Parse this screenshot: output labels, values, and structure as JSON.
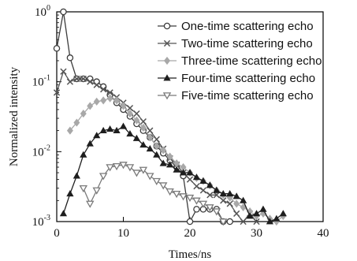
{
  "chart_data": {
    "type": "line",
    "xlabel": "Times/ns",
    "ylabel": "Normalized intensity",
    "xlim": [
      0,
      40
    ],
    "ylim": [
      0.001,
      1
    ],
    "yscale": "log",
    "x_ticks": [
      0,
      10,
      20,
      30,
      40
    ],
    "y_tick_labels": [
      {
        "value": 0.001,
        "base": "10",
        "exp": "-3"
      },
      {
        "value": 0.01,
        "base": "10",
        "exp": "-2"
      },
      {
        "value": 0.1,
        "base": "10",
        "exp": "-1"
      },
      {
        "value": 1,
        "base": "10",
        "exp": "0"
      }
    ],
    "legend_position": "top-right",
    "series": [
      {
        "name": "One-time scattering echo",
        "marker": "circle",
        "color": "#3c3c3c",
        "x": [
          0,
          1,
          2,
          3,
          4,
          5,
          6,
          7,
          8,
          9,
          10,
          11,
          12,
          13,
          14,
          15,
          16,
          17,
          18,
          19,
          20,
          21,
          22,
          23,
          24,
          25,
          26
        ],
        "y": [
          0.3,
          1.0,
          0.22,
          0.11,
          0.11,
          0.11,
          0.1,
          0.085,
          0.065,
          0.05,
          0.04,
          0.032,
          0.025,
          0.02,
          0.016,
          0.012,
          0.0095,
          0.0075,
          0.006,
          0.0045,
          0.001,
          0.0015,
          0.0015,
          0.0015,
          0.0015,
          0.001,
          0.001
        ]
      },
      {
        "name": "Two-time scattering echo",
        "marker": "x",
        "color": "#555555",
        "x": [
          0,
          1,
          2,
          3,
          4,
          5,
          6,
          7,
          8,
          9,
          10,
          11,
          12,
          13,
          14,
          15,
          16,
          17,
          18,
          19,
          20,
          21,
          22,
          23,
          24,
          25,
          26,
          27,
          28,
          29,
          30
        ],
        "y": [
          0.07,
          0.14,
          0.1,
          0.11,
          0.11,
          0.1,
          0.09,
          0.078,
          0.07,
          0.06,
          0.05,
          0.042,
          0.035,
          0.027,
          0.02,
          0.015,
          0.011,
          0.008,
          0.0065,
          0.005,
          0.004,
          0.0032,
          0.0028,
          0.0024,
          0.0024,
          0.002,
          0.0018,
          0.0013,
          0.001,
          0.0013,
          0.001
        ]
      },
      {
        "name": "Three-time scattering echo",
        "marker": "diamond",
        "color": "#a8a8a8",
        "x": [
          2,
          3,
          4,
          5,
          6,
          7,
          8,
          9,
          10,
          11,
          12,
          13,
          14,
          15,
          16,
          17,
          18,
          19,
          20,
          21,
          22,
          23,
          24,
          25,
          26,
          27,
          28,
          29,
          30,
          31,
          32,
          33,
          34
        ],
        "y": [
          0.02,
          0.026,
          0.035,
          0.045,
          0.052,
          0.054,
          0.058,
          0.054,
          0.045,
          0.035,
          0.028,
          0.022,
          0.016,
          0.012,
          0.0105,
          0.0085,
          0.0068,
          0.006,
          0.005,
          0.0042,
          0.0038,
          0.0033,
          0.0028,
          0.0024,
          0.0022,
          0.0018,
          0.0016,
          0.0014,
          0.0012,
          0.0013,
          0.0011,
          0.001,
          0.0012
        ]
      },
      {
        "name": "Four-time scattering echo",
        "marker": "triangle-up",
        "color": "#1e1e1e",
        "x": [
          1,
          2,
          3,
          4,
          5,
          6,
          7,
          8,
          9,
          10,
          11,
          12,
          13,
          14,
          15,
          16,
          17,
          18,
          19,
          20,
          21,
          22,
          23,
          24,
          25,
          26,
          27,
          28,
          29,
          30,
          31,
          32,
          33,
          34
        ],
        "y": [
          0.0013,
          0.0025,
          0.0045,
          0.009,
          0.013,
          0.017,
          0.02,
          0.021,
          0.02,
          0.023,
          0.018,
          0.0155,
          0.0125,
          0.011,
          0.009,
          0.0068,
          0.0065,
          0.0055,
          0.005,
          0.005,
          0.0043,
          0.0038,
          0.0033,
          0.0028,
          0.0025,
          0.0025,
          0.0023,
          0.002,
          0.0012,
          0.0013,
          0.0015,
          0.001,
          0.0011,
          0.0013
        ]
      },
      {
        "name": "Five-time scattering echo",
        "marker": "triangle-down",
        "color": "#7a7a7a",
        "x": [
          4,
          5,
          6,
          7,
          8,
          9,
          10,
          11,
          12,
          13,
          14,
          15,
          16,
          17,
          18,
          19,
          20,
          21,
          22,
          23,
          24,
          25
        ],
        "y": [
          0.003,
          0.0018,
          0.0028,
          0.0045,
          0.006,
          0.0062,
          0.0065,
          0.006,
          0.005,
          0.0055,
          0.0045,
          0.0038,
          0.0033,
          0.0027,
          0.0025,
          0.0023,
          0.0022,
          0.002,
          0.0018,
          0.0016,
          0.0014,
          0.001
        ]
      }
    ]
  }
}
